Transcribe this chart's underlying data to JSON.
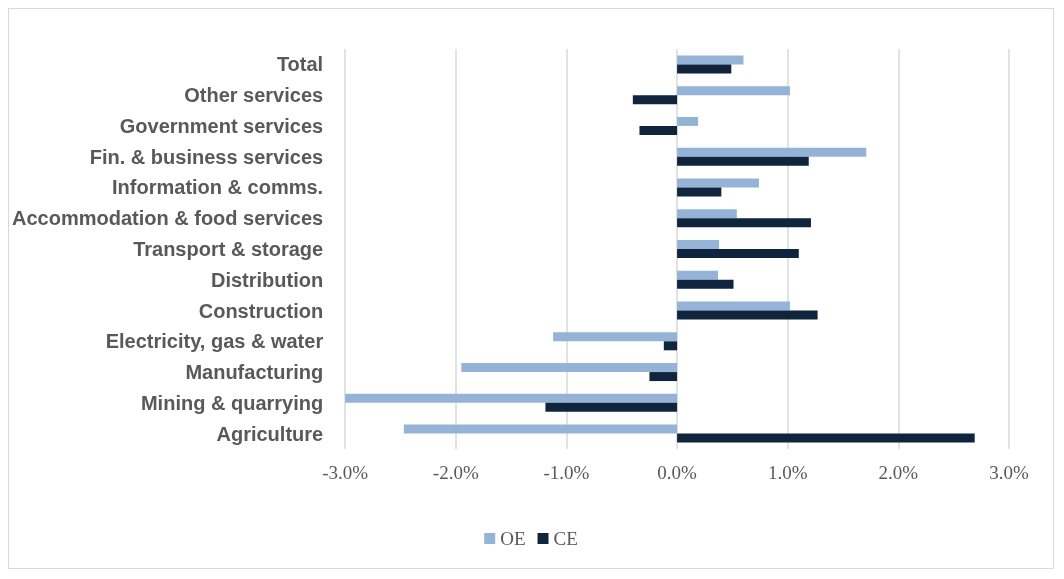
{
  "chart_data": {
    "type": "bar",
    "orientation": "horizontal",
    "categories": [
      "Total",
      "Other services",
      "Government services",
      "Fin. & business services",
      "Information & comms.",
      "Accommodation & food services",
      "Transport & storage",
      "Distribution",
      "Construction",
      "Electricity, gas & water",
      "Manufacturing",
      "Mining & quarrying",
      "Agriculture"
    ],
    "series": [
      {
        "name": "OE",
        "color": "#95b3d7",
        "values": [
          0.6,
          1.02,
          0.19,
          1.71,
          0.74,
          0.54,
          0.38,
          0.37,
          1.02,
          -1.12,
          -1.95,
          -3.0,
          -2.47
        ]
      },
      {
        "name": "CE",
        "color": "#10243e",
        "values": [
          0.49,
          -0.4,
          -0.34,
          1.19,
          0.4,
          1.21,
          1.1,
          0.51,
          1.27,
          -0.12,
          -0.25,
          -1.19,
          2.69
        ]
      }
    ],
    "xlim": [
      -3,
      3
    ],
    "xticks": [
      {
        "value": -3,
        "label": "-3.0%"
      },
      {
        "value": -2,
        "label": "-2.0%"
      },
      {
        "value": -1,
        "label": "-1.0%"
      },
      {
        "value": 0,
        "label": "0.0%"
      },
      {
        "value": 1,
        "label": "1.0%"
      },
      {
        "value": 2,
        "label": "2.0%"
      },
      {
        "value": 3,
        "label": "3.0%"
      }
    ],
    "grid": "x",
    "legend": "bottom"
  }
}
